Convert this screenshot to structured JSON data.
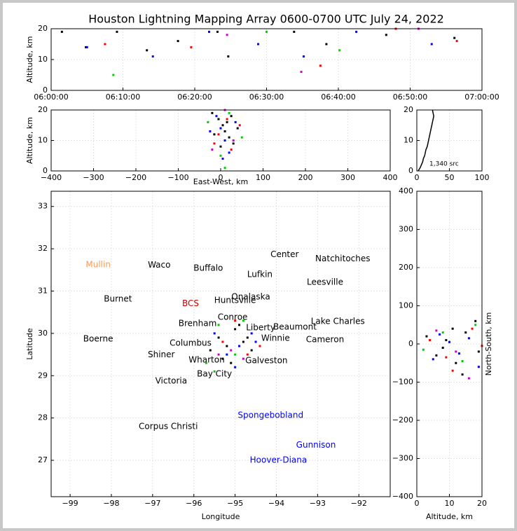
{
  "title": "Houston Lightning Mapping Array 0600-0700 UTC July 24, 2022",
  "chart_data": [
    {
      "type": "scatter",
      "ylabel": "Altitude, km",
      "xlim": [
        "06:00:00",
        "07:00:00"
      ],
      "xticks": [
        "06:00:00",
        "06:10:00",
        "06:20:00",
        "06:30:00",
        "06:40:00",
        "06:50:00",
        "07:00:00"
      ],
      "ylim": [
        0,
        20
      ],
      "yticks": [
        0,
        10,
        20
      ],
      "grid": true,
      "series": [
        {
          "color": "#000000",
          "x": [
            "06:01:30",
            "06:04:50",
            "06:09:10",
            "06:13:20",
            "06:17:40",
            "06:23:10",
            "06:24:40",
            "06:33:50",
            "06:38:20",
            "06:46:40",
            "06:56:10"
          ],
          "y": [
            19,
            14,
            19,
            13,
            16,
            19,
            11,
            19,
            15,
            18,
            17
          ]
        },
        {
          "color": "#0000ff",
          "x": [
            "06:05:00",
            "06:14:10",
            "06:22:00",
            "06:28:50",
            "06:35:10",
            "06:42:30",
            "06:53:00"
          ],
          "y": [
            14,
            11,
            19,
            15,
            11,
            19,
            15
          ]
        },
        {
          "color": "#ff0000",
          "x": [
            "06:07:30",
            "06:19:30",
            "06:37:30",
            "06:48:00",
            "06:56:30"
          ],
          "y": [
            15,
            14,
            8,
            20,
            16
          ]
        },
        {
          "color": "#00cc00",
          "x": [
            "06:08:40",
            "06:30:00",
            "06:40:10"
          ],
          "y": [
            5,
            19,
            13
          ]
        },
        {
          "color": "#cc00cc",
          "x": [
            "06:24:30",
            "06:34:50",
            "06:51:10"
          ],
          "y": [
            18,
            6,
            20
          ]
        }
      ]
    },
    {
      "type": "scatter",
      "xlabel": "East-West, km",
      "ylabel": "Altitude, km",
      "xlim": [
        -400,
        400
      ],
      "xticks": [
        {
          "value": -400,
          "label": "−400"
        },
        {
          "value": -300,
          "label": "−300"
        },
        {
          "value": -200,
          "label": "−200"
        },
        {
          "value": -100,
          "label": "−100"
        },
        0,
        100,
        200,
        300,
        400
      ],
      "ylim": [
        0,
        20
      ],
      "yticks": [
        0,
        10,
        20
      ],
      "grid": true,
      "series": [
        {
          "color": "#000000",
          "x": [
            -20,
            -5,
            5,
            10,
            20,
            30,
            -15,
            0,
            15,
            25,
            40
          ],
          "y": [
            19,
            17,
            15,
            13,
            11,
            9,
            12,
            8,
            16,
            18,
            14
          ]
        },
        {
          "color": "#0000ff",
          "x": [
            -10,
            0,
            10,
            20,
            35,
            -25,
            5
          ],
          "y": [
            18,
            14,
            10,
            6,
            16,
            13,
            4
          ]
        },
        {
          "color": "#ff0000",
          "x": [
            -5,
            15,
            25,
            45,
            -15
          ],
          "y": [
            12,
            17,
            7,
            15,
            9
          ]
        },
        {
          "color": "#00cc00",
          "x": [
            0,
            20,
            50,
            -30,
            10
          ],
          "y": [
            5,
            19,
            11,
            16,
            1
          ]
        },
        {
          "color": "#cc00cc",
          "x": [
            10,
            30,
            -20
          ],
          "y": [
            20,
            10,
            7
          ]
        }
      ]
    },
    {
      "type": "line",
      "annotation": "1,340 src",
      "xlim": [
        0,
        100
      ],
      "xticks": [
        0,
        50,
        100
      ],
      "ylim": [
        0,
        20
      ],
      "yticks": [
        0,
        10,
        20
      ],
      "grid": true,
      "series": [
        {
          "color": "#000000",
          "x": [
            2,
            5,
            7,
            9,
            10,
            12,
            13,
            14,
            16,
            17,
            18,
            19,
            20,
            21,
            22,
            23,
            24,
            25,
            26,
            25,
            24
          ],
          "y": [
            0,
            1,
            2,
            3,
            4,
            5,
            6,
            7,
            8,
            9,
            10,
            11,
            12,
            13,
            14,
            15,
            16,
            17,
            18,
            19,
            20
          ]
        }
      ]
    },
    {
      "type": "map",
      "xlabel": "Longitude",
      "ylabel": "Latitude",
      "xlim": [
        -99.46,
        -91.24
      ],
      "xticks": [
        {
          "value": -99,
          "label": "−99"
        },
        {
          "value": -98,
          "label": "−98"
        },
        {
          "value": -97,
          "label": "−97"
        },
        {
          "value": -96,
          "label": "−96"
        },
        {
          "value": -95,
          "label": "−95"
        },
        {
          "value": -94,
          "label": "−94"
        },
        {
          "value": -93,
          "label": "−93"
        },
        {
          "value": -92,
          "label": "−92"
        }
      ],
      "ylim": [
        26.14,
        33.36
      ],
      "yticks": [
        27,
        28,
        29,
        30,
        31,
        32,
        33
      ],
      "grid": true,
      "places": [
        {
          "name": "Mullin",
          "lon": -98.32,
          "lat": 31.62,
          "color": "#ff9955"
        },
        {
          "name": "Waco",
          "lon": -96.84,
          "lat": 31.61,
          "color": "#000000"
        },
        {
          "name": "Buffalo",
          "lon": -95.65,
          "lat": 31.54,
          "color": "#000000"
        },
        {
          "name": "Center",
          "lon": -93.8,
          "lat": 31.86,
          "color": "#000000"
        },
        {
          "name": "Natchitoches",
          "lon": -92.39,
          "lat": 31.76,
          "color": "#000000"
        },
        {
          "name": "Lufkin",
          "lon": -94.4,
          "lat": 31.39,
          "color": "#000000"
        },
        {
          "name": "Leesville",
          "lon": -92.82,
          "lat": 31.21,
          "color": "#000000"
        },
        {
          "name": "Burnet",
          "lon": -97.84,
          "lat": 30.81,
          "color": "#000000"
        },
        {
          "name": "BCS",
          "lon": -96.08,
          "lat": 30.7,
          "color": "#cc0000"
        },
        {
          "name": "Huntsville",
          "lon": -95.0,
          "lat": 30.78,
          "color": "#000000"
        },
        {
          "name": "Onalaska",
          "lon": -94.62,
          "lat": 30.86,
          "color": "#000000"
        },
        {
          "name": "Conroe",
          "lon": -95.06,
          "lat": 30.38,
          "color": "#000000"
        },
        {
          "name": "Brenham",
          "lon": -95.91,
          "lat": 30.23,
          "color": "#000000"
        },
        {
          "name": "Lake Charles",
          "lon": -92.51,
          "lat": 30.28,
          "color": "#000000"
        },
        {
          "name": "Beaumont",
          "lon": -93.55,
          "lat": 30.15,
          "color": "#000000"
        },
        {
          "name": "Liberty",
          "lon": -94.38,
          "lat": 30.13,
          "color": "#000000"
        },
        {
          "name": "Winnie",
          "lon": -94.02,
          "lat": 29.88,
          "color": "#000000"
        },
        {
          "name": "Boerne",
          "lon": -98.32,
          "lat": 29.87,
          "color": "#000000"
        },
        {
          "name": "Columbus",
          "lon": -96.08,
          "lat": 29.77,
          "color": "#000000"
        },
        {
          "name": "Cameron",
          "lon": -92.82,
          "lat": 29.85,
          "color": "#000000"
        },
        {
          "name": "Shiner",
          "lon": -96.79,
          "lat": 29.49,
          "color": "#000000"
        },
        {
          "name": "Wharton",
          "lon": -95.69,
          "lat": 29.37,
          "color": "#000000"
        },
        {
          "name": "Galveston",
          "lon": -94.24,
          "lat": 29.35,
          "color": "#000000"
        },
        {
          "name": "Bay City",
          "lon": -95.5,
          "lat": 29.04,
          "color": "#000000"
        },
        {
          "name": "Victoria",
          "lon": -96.55,
          "lat": 28.87,
          "color": "#000000"
        },
        {
          "name": "Spongebobland",
          "lon": -94.14,
          "lat": 28.06,
          "color": "#0000ff"
        },
        {
          "name": "Corpus Christi",
          "lon": -96.62,
          "lat": 27.8,
          "color": "#000000"
        },
        {
          "name": "Gunnison",
          "lon": -93.04,
          "lat": 27.36,
          "color": "#0000ff"
        },
        {
          "name": "Hoover-Diana",
          "lon": -93.95,
          "lat": 27.0,
          "color": "#0000ff"
        }
      ],
      "series": [
        {
          "color": "#000000",
          "x": [
            -95.4,
            -95.2,
            -95.0,
            -94.8,
            -94.6,
            -95.3,
            -95.1,
            -94.9,
            -94.7,
            -95.6
          ],
          "y": [
            29.9,
            29.7,
            30.1,
            29.8,
            29.6,
            29.4,
            29.3,
            30.2,
            29.9,
            29.6
          ]
        },
        {
          "color": "#0000ff",
          "x": [
            -95.5,
            -95.2,
            -94.9,
            -94.6,
            -95.0,
            -94.5
          ],
          "y": [
            30.0,
            29.5,
            29.7,
            30.0,
            29.2,
            29.8
          ]
        },
        {
          "color": "#ff0000",
          "x": [
            -95.3,
            -95.0,
            -94.7,
            -94.4
          ],
          "y": [
            29.8,
            30.3,
            29.5,
            29.7
          ]
        },
        {
          "color": "#00cc00",
          "x": [
            -95.7,
            -95.4,
            -95.0,
            -94.8,
            -95.5
          ],
          "y": [
            29.3,
            30.2,
            29.5,
            30.3,
            29.1
          ]
        },
        {
          "color": "#cc00cc",
          "x": [
            -95.1,
            -94.8,
            -95.4
          ],
          "y": [
            29.6,
            29.4,
            29.5
          ]
        }
      ]
    },
    {
      "type": "scatter",
      "xlabel": "Altitude, km",
      "ylabel": "North-South, km",
      "xlim": [
        0,
        20
      ],
      "xticks": [
        0,
        10,
        20
      ],
      "ylim": [
        -400,
        400
      ],
      "yticks": [
        {
          "value": -400,
          "label": "−400"
        },
        {
          "value": -300,
          "label": "−300"
        },
        {
          "value": -200,
          "label": "−200"
        },
        {
          "value": -100,
          "label": "−100"
        },
        0,
        100,
        200,
        300,
        400
      ],
      "grid": true,
      "series": [
        {
          "color": "#000000",
          "x": [
            3,
            6,
            9,
            12,
            15,
            18,
            8,
            14,
            19,
            11
          ],
          "y": [
            20,
            -30,
            10,
            -50,
            30,
            60,
            -10,
            -80,
            -20,
            40
          ]
        },
        {
          "color": "#0000ff",
          "x": [
            5,
            10,
            13,
            16,
            19,
            7
          ],
          "y": [
            -40,
            5,
            -25,
            15,
            -60,
            25
          ]
        },
        {
          "color": "#ff0000",
          "x": [
            4,
            11,
            17,
            20,
            9
          ],
          "y": [
            10,
            -70,
            40,
            -5,
            -35
          ]
        },
        {
          "color": "#00cc00",
          "x": [
            2,
            8,
            14,
            18
          ],
          "y": [
            -15,
            30,
            -45,
            50
          ]
        },
        {
          "color": "#cc00cc",
          "x": [
            6,
            12,
            16
          ],
          "y": [
            35,
            -20,
            -90
          ]
        }
      ]
    }
  ]
}
